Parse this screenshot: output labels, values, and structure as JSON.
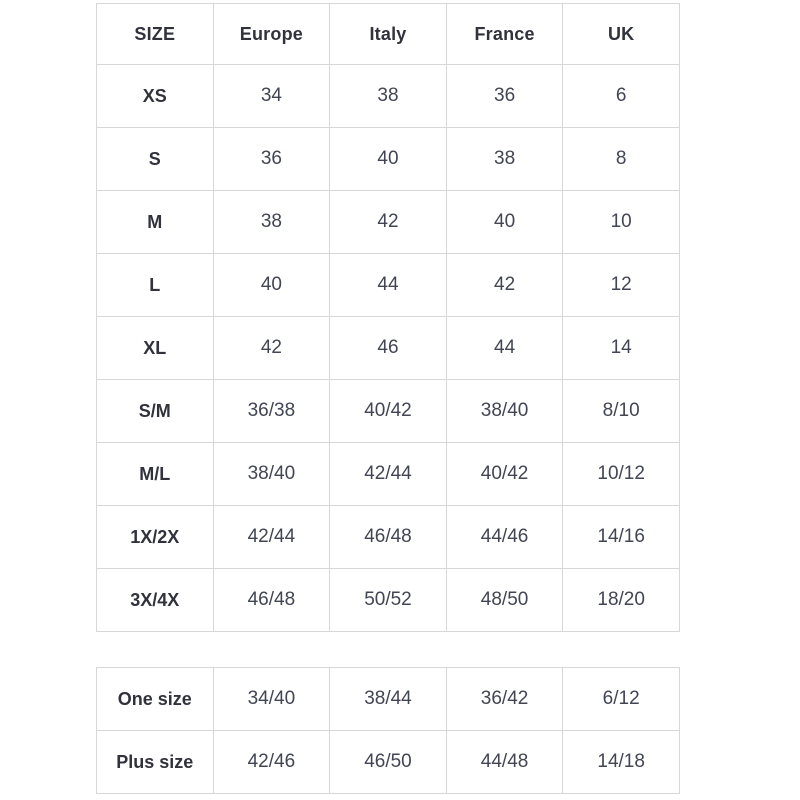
{
  "colors": {
    "background": "#ffffff",
    "border": "#d7d7d7",
    "label_text": "#31323c",
    "value_text": "#424553"
  },
  "size_table": {
    "headers": [
      "SIZE",
      "Europe",
      "Italy",
      "France",
      "UK"
    ],
    "rows": [
      [
        "XS",
        "34",
        "38",
        "36",
        "6"
      ],
      [
        "S",
        "36",
        "40",
        "38",
        "8"
      ],
      [
        "M",
        "38",
        "42",
        "40",
        "10"
      ],
      [
        "L",
        "40",
        "44",
        "42",
        "12"
      ],
      [
        "XL",
        "42",
        "46",
        "44",
        "14"
      ],
      [
        "S/M",
        "36/38",
        "40/42",
        "38/40",
        "8/10"
      ],
      [
        "M/L",
        "38/40",
        "42/44",
        "40/42",
        "10/12"
      ],
      [
        "1X/2X",
        "42/44",
        "46/48",
        "44/46",
        "14/16"
      ],
      [
        "3X/4X",
        "46/48",
        "50/52",
        "48/50",
        "18/20"
      ]
    ]
  },
  "special_table": {
    "rows": [
      [
        "One size",
        "34/40",
        "38/44",
        "36/42",
        "6/12"
      ],
      [
        "Plus size",
        "42/46",
        "46/50",
        "44/48",
        "14/18"
      ]
    ]
  }
}
